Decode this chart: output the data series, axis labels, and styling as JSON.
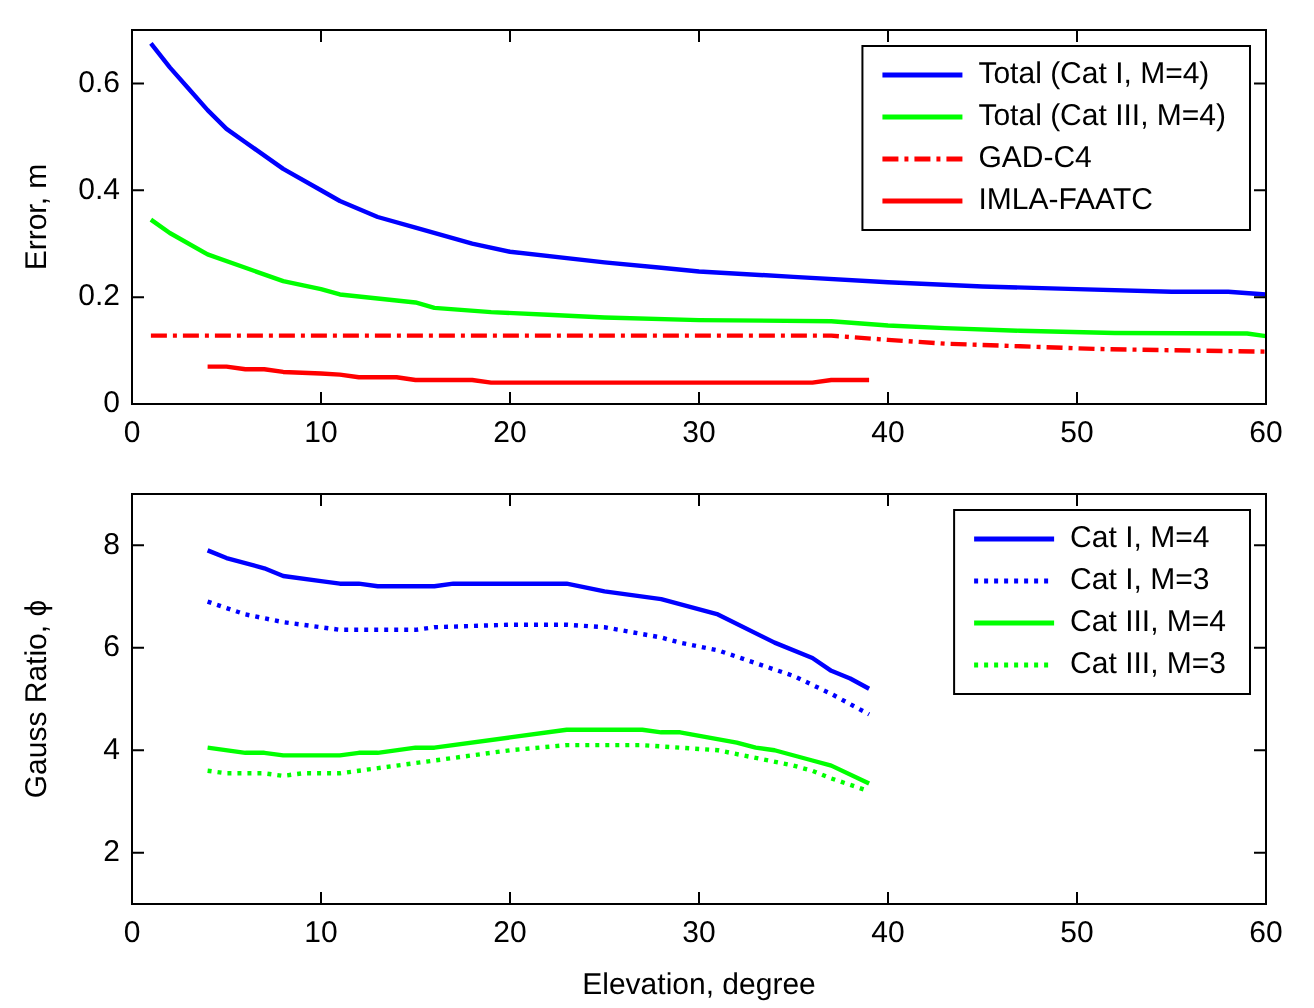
{
  "chart_data": [
    {
      "type": "line",
      "ylabel": "Error, m",
      "xlim": [
        0,
        60
      ],
      "xticks": [
        0,
        10,
        20,
        30,
        40,
        50,
        60
      ],
      "ylim": [
        0,
        0.7
      ],
      "yticks": [
        0,
        0.2,
        0.4,
        0.6
      ],
      "grid": false,
      "legend": "top right",
      "marker": "none",
      "series": [
        {
          "name": "Total (Cat I, M=4)",
          "color": "#0000ff",
          "line_style": "solid",
          "x": [
            1,
            2,
            3,
            4,
            5,
            6,
            8,
            10,
            11,
            13,
            15,
            18,
            20,
            25,
            28,
            30,
            35,
            40,
            45,
            50,
            55,
            58,
            60
          ],
          "values": [
            0.675,
            0.63,
            0.59,
            0.55,
            0.515,
            0.49,
            0.44,
            0.4,
            0.38,
            0.35,
            0.33,
            0.3,
            0.285,
            0.265,
            0.255,
            0.248,
            0.238,
            0.228,
            0.22,
            0.215,
            0.21,
            0.21,
            0.205
          ]
        },
        {
          "name": "Total (Cat III, M=4)",
          "color": "#00ff00",
          "line_style": "solid",
          "x": [
            1,
            2,
            4,
            6,
            8,
            10,
            11,
            15,
            16,
            19,
            22,
            25,
            30,
            37,
            40,
            43,
            47,
            52,
            59,
            60
          ],
          "values": [
            0.345,
            0.32,
            0.28,
            0.255,
            0.23,
            0.215,
            0.205,
            0.19,
            0.18,
            0.172,
            0.167,
            0.162,
            0.157,
            0.155,
            0.147,
            0.142,
            0.137,
            0.133,
            0.132,
            0.127
          ]
        },
        {
          "name": "GAD-C4",
          "color": "#ff0000",
          "line_style": "dashdot",
          "x": [
            1,
            37,
            40,
            43,
            47,
            51,
            56,
            60
          ],
          "values": [
            0.128,
            0.128,
            0.12,
            0.113,
            0.108,
            0.103,
            0.1,
            0.098
          ]
        },
        {
          "name": "IMLA-FAATC",
          "color": "#ff0000",
          "line_style": "solid",
          "x": [
            4,
            5,
            6,
            7,
            8,
            10,
            11,
            12,
            14,
            15,
            18,
            19,
            36,
            37,
            39
          ],
          "values": [
            0.07,
            0.07,
            0.065,
            0.065,
            0.06,
            0.057,
            0.055,
            0.05,
            0.05,
            0.045,
            0.045,
            0.04,
            0.04,
            0.045,
            0.045
          ]
        }
      ]
    },
    {
      "type": "line",
      "xlabel": "Elevation, degree",
      "ylabel": "Gauss Ratio, ϕ",
      "xlim": [
        0,
        60
      ],
      "xticks": [
        0,
        10,
        20,
        30,
        40,
        50,
        60
      ],
      "ylim": [
        1,
        9
      ],
      "yticks": [
        2,
        4,
        6,
        8
      ],
      "grid": false,
      "legend": "top right",
      "marker": "none",
      "series": [
        {
          "name": "Cat I, M=4",
          "color": "#0000ff",
          "line_style": "solid",
          "x": [
            4,
            5,
            7,
            8,
            10,
            11,
            12,
            13,
            16,
            17,
            23,
            25,
            28,
            31,
            34,
            36,
            37,
            38,
            39
          ],
          "values": [
            7.9,
            7.75,
            7.55,
            7.4,
            7.3,
            7.25,
            7.25,
            7.2,
            7.2,
            7.25,
            7.25,
            7.1,
            6.95,
            6.65,
            6.1,
            5.8,
            5.55,
            5.4,
            5.2
          ]
        },
        {
          "name": "Cat I, M=3",
          "color": "#0000ff",
          "line_style": "dotted",
          "x": [
            4,
            6,
            8,
            10,
            11,
            15,
            16,
            20,
            23,
            25,
            28,
            29,
            31,
            33,
            35,
            37,
            39
          ],
          "values": [
            6.9,
            6.65,
            6.5,
            6.4,
            6.35,
            6.35,
            6.4,
            6.45,
            6.45,
            6.4,
            6.2,
            6.1,
            5.95,
            5.7,
            5.45,
            5.1,
            4.7
          ]
        },
        {
          "name": "Cat III, M=4",
          "color": "#00ff00",
          "line_style": "solid",
          "x": [
            4,
            6,
            7,
            8,
            11,
            12,
            13,
            15,
            16,
            20,
            23,
            27,
            28,
            29,
            32,
            33,
            34,
            36,
            37,
            39
          ],
          "values": [
            4.05,
            3.95,
            3.95,
            3.9,
            3.9,
            3.95,
            3.95,
            4.05,
            4.05,
            4.25,
            4.4,
            4.4,
            4.35,
            4.35,
            4.15,
            4.05,
            4.0,
            3.8,
            3.7,
            3.35
          ]
        },
        {
          "name": "Cat III, M=3",
          "color": "#00ff00",
          "line_style": "dotted",
          "x": [
            4,
            5,
            7,
            8,
            9,
            11,
            13,
            16,
            20,
            23,
            27,
            29,
            31,
            33,
            35,
            36,
            37,
            39
          ],
          "values": [
            3.6,
            3.55,
            3.55,
            3.5,
            3.55,
            3.55,
            3.65,
            3.8,
            4.0,
            4.1,
            4.1,
            4.05,
            4.0,
            3.85,
            3.7,
            3.6,
            3.45,
            3.2
          ]
        }
      ]
    }
  ]
}
